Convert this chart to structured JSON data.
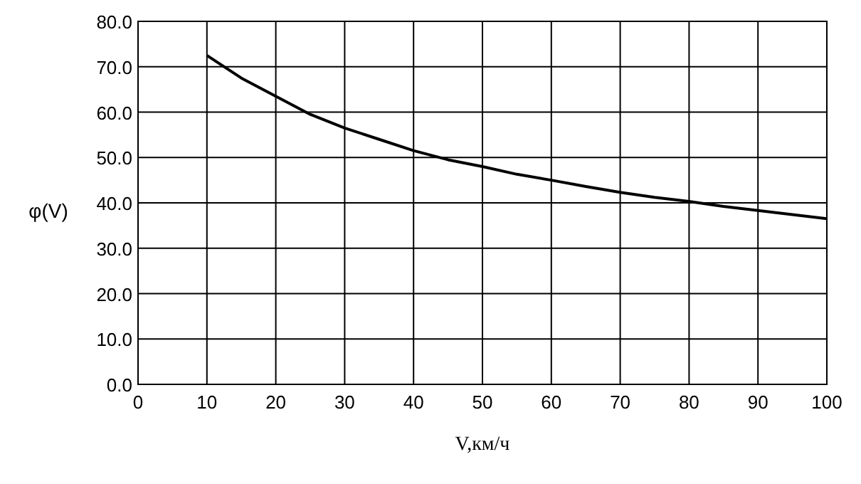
{
  "chart_data": {
    "type": "line",
    "xlabel": "V,км/ч",
    "ylabel": "φ(V)",
    "x": [
      10,
      15,
      20,
      25,
      30,
      35,
      40,
      45,
      50,
      55,
      60,
      65,
      70,
      75,
      80,
      85,
      90,
      95,
      100
    ],
    "series": [
      {
        "color": "#000000",
        "values": [
          72.5,
          67.5,
          63.5,
          59.5,
          56.5,
          54,
          51.5,
          49.5,
          48,
          46.3,
          45,
          43.6,
          42.3,
          41.2,
          40.3,
          39.2,
          38.3,
          37.4,
          36.5
        ]
      }
    ],
    "xlim": [
      0,
      100
    ],
    "xticks": [
      0,
      10,
      20,
      30,
      40,
      50,
      60,
      70,
      80,
      90,
      100
    ],
    "ylim": [
      0,
      80
    ],
    "yticks": [
      {
        "value": 0,
        "label": "0.0"
      },
      {
        "value": 10,
        "label": "10.0"
      },
      {
        "value": 20,
        "label": "20.0"
      },
      {
        "value": 30,
        "label": "30.0"
      },
      {
        "value": 40,
        "label": "40.0"
      },
      {
        "value": 50,
        "label": "50.0"
      },
      {
        "value": 60,
        "label": "60.0"
      },
      {
        "value": 70,
        "label": "70.0"
      },
      {
        "value": 80,
        "label": "80.0"
      }
    ],
    "grid": true,
    "marker": "none",
    "line_style": "solid"
  }
}
